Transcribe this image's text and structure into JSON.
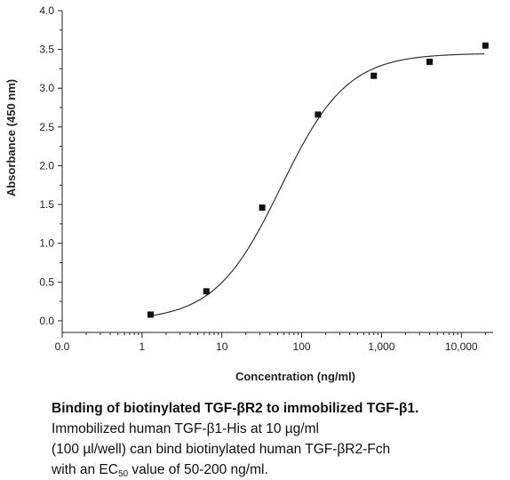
{
  "chart_data": {
    "type": "scatter",
    "xlabel": "Concentration (ng/ml)",
    "ylabel": "Absorbance (450 nm)",
    "xscale": "log",
    "xlim": [
      0.1,
      25000
    ],
    "ylim": [
      -0.15,
      4.0
    ],
    "x_tick_labels": [
      "0.0",
      "1",
      "10",
      "100",
      "1,000",
      "10,000"
    ],
    "y_ticks": [
      0.0,
      0.5,
      1.0,
      1.5,
      2.0,
      2.5,
      3.0,
      3.5,
      4.0
    ],
    "y_tick_labels": [
      "0.0",
      "0.5",
      "1.0",
      "1.5",
      "2.0",
      "2.5",
      "3.0",
      "3.5",
      "4.0"
    ],
    "grid": false,
    "series": [
      {
        "x": [
          1.28,
          6.4,
          32,
          160,
          800,
          4000,
          20000
        ],
        "y": [
          0.08,
          0.38,
          1.46,
          2.66,
          3.16,
          3.34,
          3.55
        ]
      }
    ],
    "fit_curve": {
      "model": "4PL",
      "bottom": 0.0,
      "top": 3.45,
      "ec50": 55,
      "hill": 1.05
    },
    "colors": {
      "points": "#111111",
      "curve": "#333333",
      "axis": "#222222"
    }
  },
  "caption": {
    "title": "Binding of biotinylated TGF-βR2 to immobilized TGF-β1.",
    "line1": "Immobilized human TGF-β1-His at 10 µg/ml",
    "line2": "(100 µl/well) can bind biotinylated human TGF-βR2-Fch",
    "line3_pre": "with an EC",
    "line3_sub": "50",
    "line3_post": " value of 50-200 ng/ml."
  }
}
